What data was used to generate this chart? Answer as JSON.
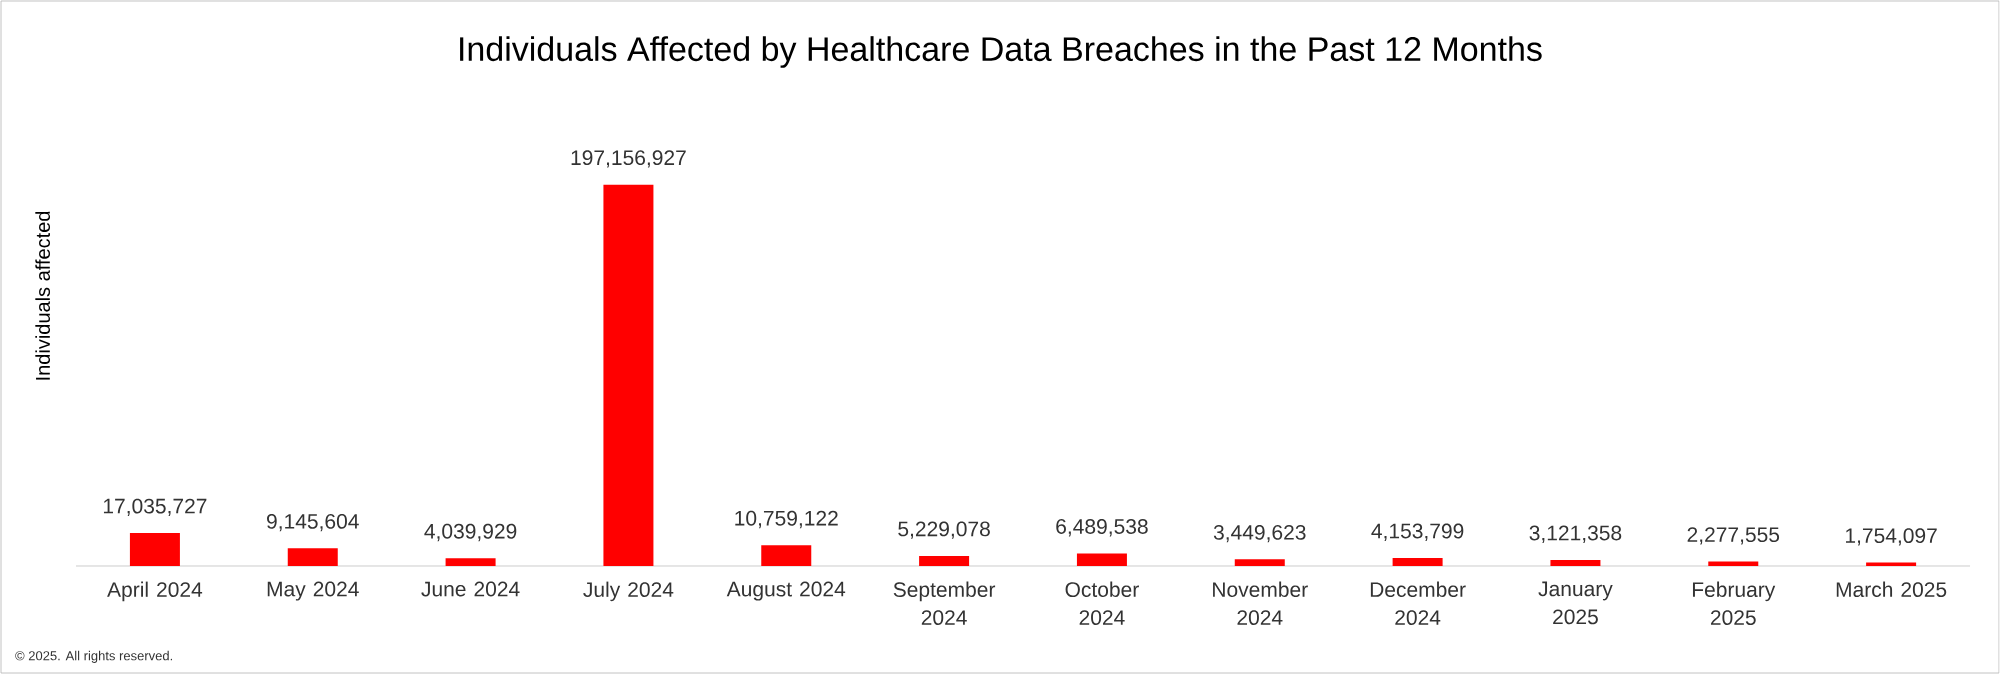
{
  "chart_data": {
    "type": "bar",
    "title": "Individuals Affected by Healthcare Data Breaches in the Past 12 Months",
    "ylabel": "Individuals affected",
    "categories": [
      "April 2024",
      "May 2024",
      "June 2024",
      "July 2024",
      "August 2024",
      "September 2024",
      "October 2024",
      "November 2024",
      "December 2024",
      "January 2025",
      "February 2025",
      "March 2025"
    ],
    "values": [
      17035727,
      9145604,
      4039929,
      197156927,
      10759122,
      5229078,
      6489538,
      3449623,
      4153799,
      3121358,
      2277555,
      1754097
    ],
    "value_labels": [
      "17,035,727",
      "9,145,604",
      "4,039,929",
      "197,156,927",
      "10,759,122",
      "5,229,078",
      "6,489,538",
      "3,449,623",
      "4,153,799",
      "3,121,358",
      "2,277,555",
      "1,754,097"
    ],
    "color": "#ff0000",
    "tick_labels": "x",
    "annotations": [
      "© 2025. All rights reserved."
    ]
  }
}
